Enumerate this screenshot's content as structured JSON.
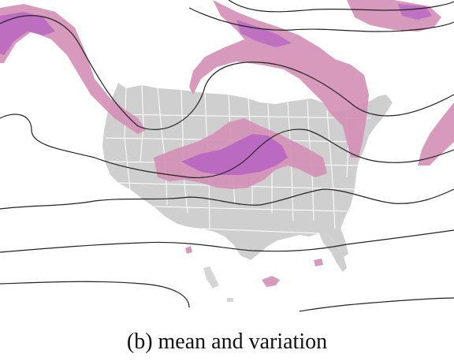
{
  "figure": {
    "caption": "(b) mean and variation",
    "colors": {
      "land": "#cfcfcf",
      "state_borders": "#ffffff",
      "variation_light": "#d38fb6",
      "variation_dark": "#b45fc2",
      "contours": "#222222"
    }
  }
}
